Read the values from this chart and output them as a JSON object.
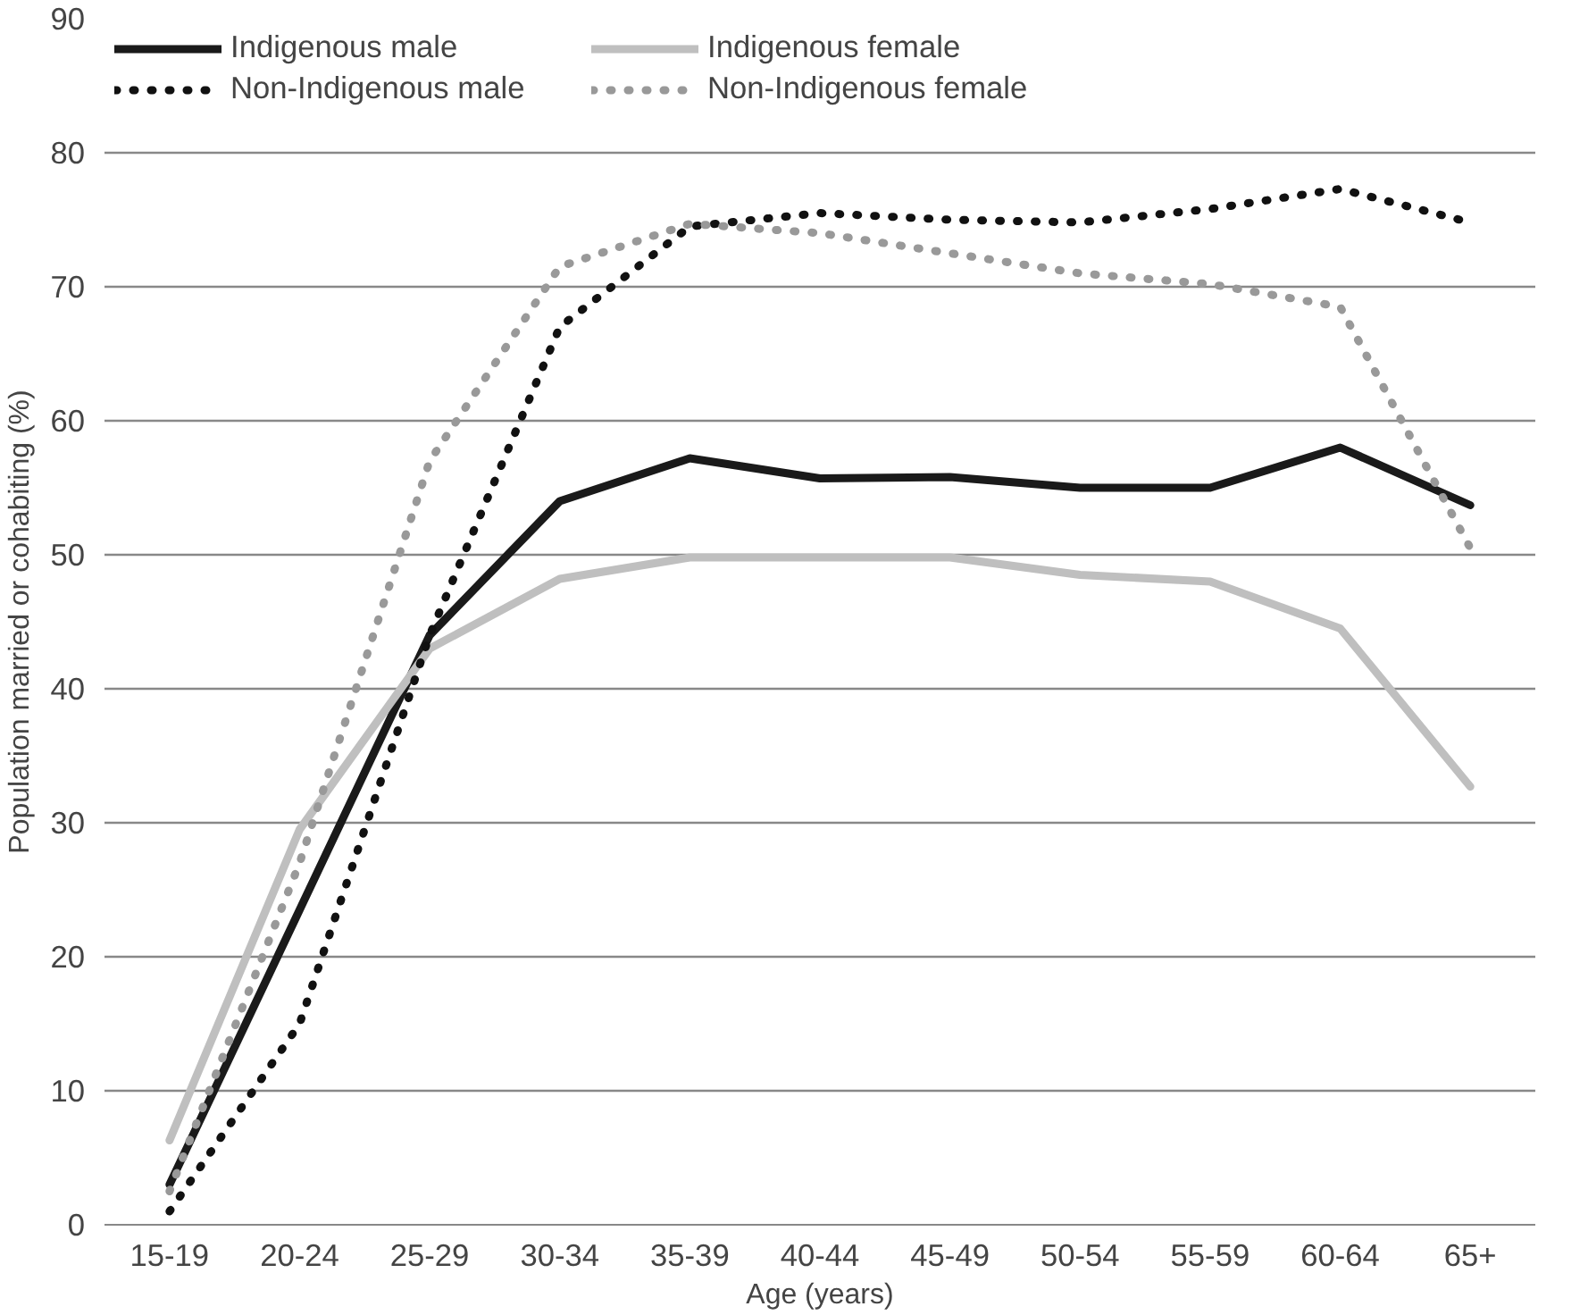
{
  "chart_data": {
    "type": "line",
    "xlabel": "Age (years)",
    "ylabel": "Population married or cohabiting (%)",
    "categories": [
      "15-19",
      "20-24",
      "25-29",
      "30-34",
      "35-39",
      "40-44",
      "45-49",
      "50-54",
      "55-59",
      "60-64",
      "65+"
    ],
    "ylim": [
      0,
      90
    ],
    "yticks": [
      0,
      10,
      20,
      30,
      40,
      50,
      60,
      70,
      80,
      90
    ],
    "grid": "y",
    "legend": "top",
    "marker": "none",
    "series": [
      {
        "name": "Indigenous male",
        "color": "#1a1a1a",
        "line_style": "solid",
        "values": [
          3,
          23.5,
          44,
          54,
          57.2,
          55.7,
          55.8,
          55,
          55,
          58,
          53.7
        ]
      },
      {
        "name": "Indigenous female",
        "color": "#bfbfbf",
        "line_style": "solid",
        "values": [
          6.3,
          29.5,
          43,
          48.2,
          49.8,
          49.8,
          49.8,
          48.5,
          48,
          44.5,
          32.7
        ]
      },
      {
        "name": "Non-Indigenous male",
        "color": "#111111",
        "line_style": "dotted",
        "values": [
          1,
          15,
          44,
          67,
          74.5,
          75.5,
          75,
          74.8,
          75.8,
          77.3,
          74.8
        ]
      },
      {
        "name": "Non-Indigenous female",
        "color": "#999999",
        "line_style": "dotted",
        "values": [
          2.5,
          27,
          57,
          71.5,
          74.7,
          74,
          72.5,
          71,
          70.2,
          68.5,
          50.5
        ]
      }
    ]
  }
}
